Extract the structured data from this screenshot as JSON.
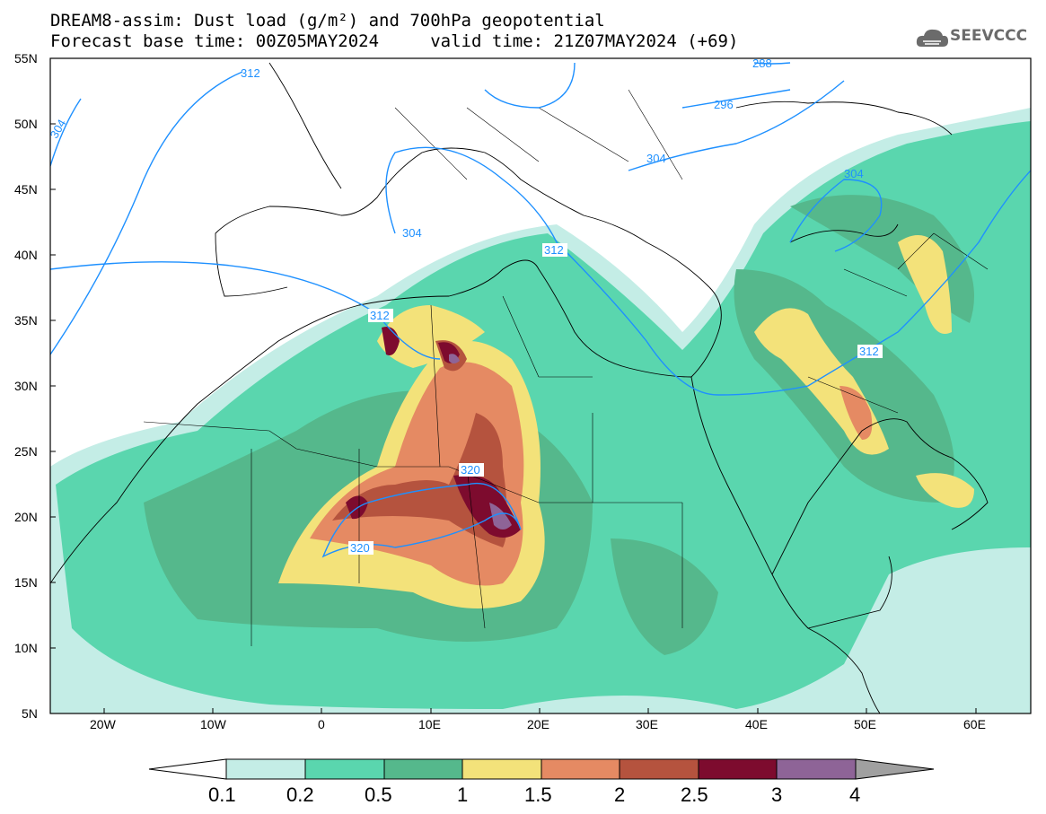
{
  "title": {
    "line1": "DREAM8-assim: Dust load (g/m²) and 700hPa geopotential",
    "line2": "Forecast base time: 00Z05MAY2024     valid time: 21Z07MAY2024 (+69)"
  },
  "logo": {
    "text": "SEEVCCC",
    "icon": "cloud-logo-icon"
  },
  "map": {
    "lat_labels": [
      "55N",
      "50N",
      "45N",
      "40N",
      "35N",
      "30N",
      "25N",
      "20N",
      "15N",
      "10N",
      "5N"
    ],
    "lon_labels": [
      "20W",
      "10W",
      "0",
      "10E",
      "20E",
      "30E",
      "40E",
      "50E",
      "60E"
    ],
    "isoline_labels": [
      "312",
      "304",
      "296",
      "288",
      "304",
      "304",
      "312",
      "312",
      "304",
      "312",
      "320",
      "320"
    ]
  },
  "colorbar": {
    "ticks": [
      "0.1",
      "0.2",
      "0.5",
      "1",
      "1.5",
      "2",
      "2.5",
      "3",
      "4"
    ],
    "colors": [
      "#c4ede6",
      "#5ad6ae",
      "#55b88c",
      "#f3e27a",
      "#e58a63",
      "#b5533e",
      "#7d0b2e",
      "#8e6497",
      "#a0a0a0"
    ]
  },
  "chart_data": {
    "type": "heatmap",
    "title": "DREAM8-assim: Dust load (g/m²) and 700hPa geopotential",
    "xlim": [
      "25W",
      "65E"
    ],
    "ylim": [
      "5N",
      "55N"
    ],
    "contour_levels": [
      0.1,
      0.2,
      0.5,
      1,
      1.5,
      2,
      2.5,
      3,
      4
    ],
    "geopotential_isolines": [
      288,
      296,
      304,
      312,
      320
    ]
  }
}
